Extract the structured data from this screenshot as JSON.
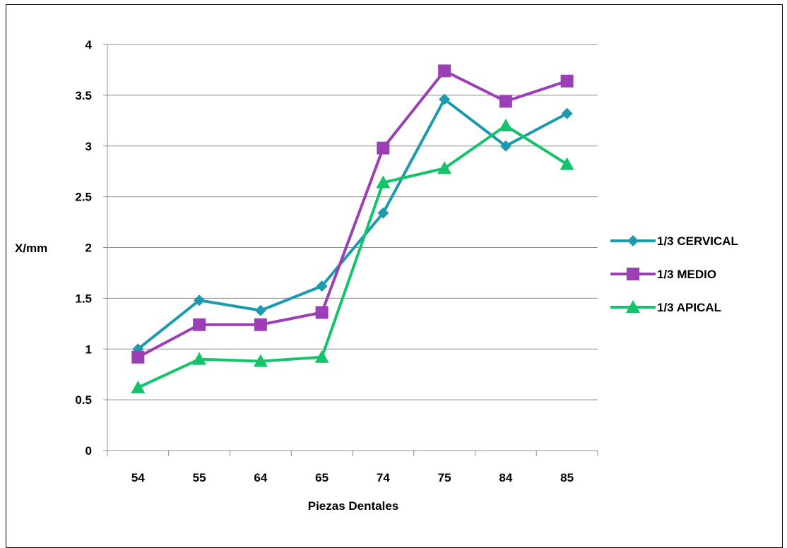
{
  "chart_data": {
    "type": "line",
    "title": "",
    "xlabel": "Piezas Dentales",
    "ylabel": "X/mm",
    "categories": [
      "54",
      "55",
      "64",
      "65",
      "74",
      "75",
      "84",
      "85"
    ],
    "ylim": [
      0,
      4
    ],
    "yticks": [
      "0",
      "0.5",
      "1",
      "1.5",
      "2",
      "2.5",
      "3",
      "3.5",
      "4"
    ],
    "grid": "horizontal",
    "legend": "right",
    "series": [
      {
        "name": "1/3 CERVICAL",
        "color": "#1E9AAE",
        "marker": "diamond",
        "values": [
          1.0,
          1.48,
          1.38,
          1.62,
          2.34,
          3.46,
          3.0,
          3.32
        ]
      },
      {
        "name": "1/3 MEDIO",
        "color": "#9B3FB5",
        "marker": "square",
        "values": [
          0.92,
          1.24,
          1.24,
          1.36,
          2.98,
          3.74,
          3.44,
          3.64
        ]
      },
      {
        "name": "1/3 APICAL",
        "color": "#13C46A",
        "marker": "triangle",
        "values": [
          0.62,
          0.9,
          0.88,
          0.92,
          2.64,
          2.78,
          3.2,
          2.82
        ]
      }
    ]
  }
}
